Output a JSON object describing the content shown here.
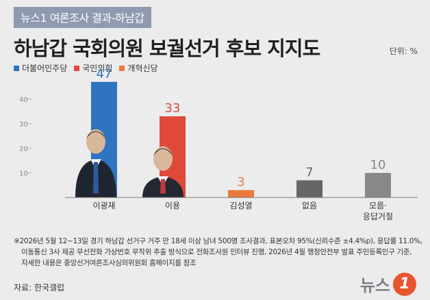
{
  "header": {
    "tag": "뉴스1 여론조사 결과-하남갑",
    "title": "하남갑 국회의원 보궐선거 후보 지지도",
    "unit": "단위: %"
  },
  "chart_data": {
    "type": "bar",
    "categories": [
      "이광재",
      "이용",
      "김성열",
      "없음",
      "모름·\n응답거절"
    ],
    "values": [
      47,
      33,
      3,
      7,
      10
    ],
    "colors": [
      "#2f74c0",
      "#e0483a",
      "#ea7a3a",
      "#666666",
      "#888888"
    ],
    "ylim": [
      0,
      50
    ],
    "yticks": [
      10,
      20,
      30,
      40
    ],
    "grid": false,
    "legend_position": "top-left",
    "legend": [
      {
        "name": "더불어민주당",
        "color": "#2f74c0"
      },
      {
        "name": "국민의힘",
        "color": "#e0483a"
      },
      {
        "name": "개혁신당",
        "color": "#ea7a3a"
      }
    ]
  },
  "notes": {
    "line1": "※2026년 5월 12~13일 경기 하남갑 선거구 거주 만 18세 이상 남녀 500명 조사결과, 표본오차 95%(신뢰수준 ±4.4%p), 응답률 11.0%,",
    "line2": "이동통신 3사 제공 무선전화 가상번호 무작위 추출 방식으로 전화조사원 인터뷰 진행, 2026년 4월 행정안전부 발표 주민등록인구 기준,",
    "line3": "자세한 내용은 중앙선거여론조사심의위원회 홈페이지를 참조"
  },
  "source": "자료: 한국갤럽",
  "logo": {
    "text": "뉴스",
    "mark": "1"
  }
}
